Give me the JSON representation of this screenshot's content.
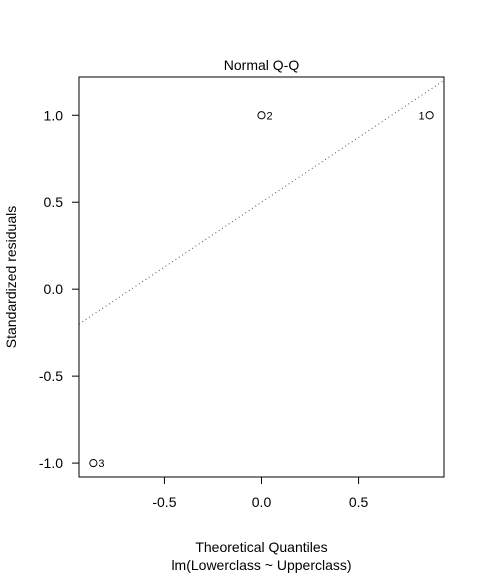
{
  "chart_data": {
    "type": "scatter",
    "title": "Normal Q-Q",
    "xlabel": "Theoretical Quantiles",
    "subtitle": "lm(Lowerclass ~ Upperclass)",
    "ylabel": "Standardized residuals",
    "xlim": [
      -0.94,
      0.94
    ],
    "ylim": [
      -1.08,
      1.22
    ],
    "x_ticks": [
      -0.5,
      0.0,
      0.5
    ],
    "x_tick_labels": [
      "-0.5",
      "0.0",
      "0.5"
    ],
    "y_ticks": [
      -1.0,
      -0.5,
      0.0,
      0.5,
      1.0
    ],
    "y_tick_labels": [
      "-1.0",
      "-0.5",
      "0.0",
      "0.5",
      "1.0"
    ],
    "points": [
      {
        "x": 0.866,
        "y": 1.0,
        "label": "1",
        "label_side": "left"
      },
      {
        "x": 0.0,
        "y": 1.0,
        "label": "2",
        "label_side": "right"
      },
      {
        "x": -0.866,
        "y": -1.0,
        "label": "3",
        "label_side": "right"
      }
    ],
    "reference_line": {
      "intercept": 0.5,
      "slope": 0.7454,
      "style": "dotted",
      "color": "#555555"
    },
    "grid": false,
    "legend": "none"
  }
}
